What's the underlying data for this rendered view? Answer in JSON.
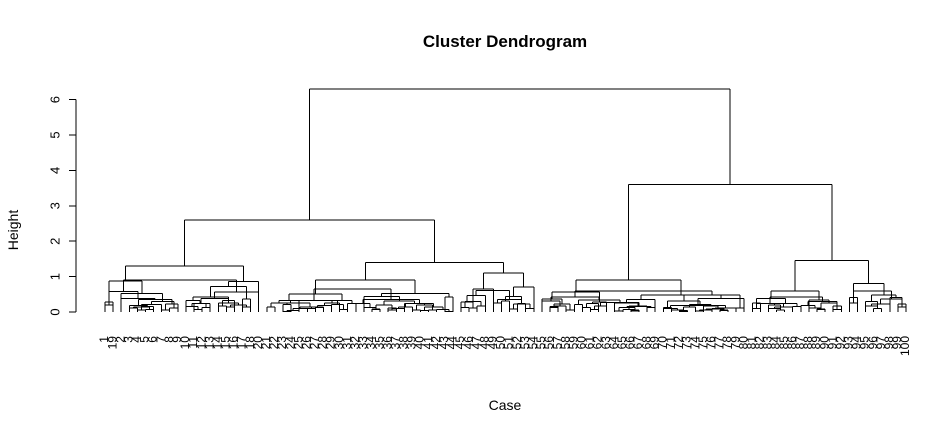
{
  "chart_data": {
    "type": "dendrogram",
    "title": "Cluster Dendrogram",
    "xlabel": "Case",
    "ylabel": "Height",
    "ylim": [
      0,
      6.5
    ],
    "yticks": [
      0,
      1,
      2,
      3,
      4,
      5,
      6
    ],
    "leaf_labels": [
      "1",
      "19",
      "2",
      "3",
      "4",
      "5",
      "6",
      "7",
      "8",
      "9",
      "10",
      "11",
      "12",
      "13",
      "14",
      "15",
      "16",
      "17",
      "18",
      "20",
      "21",
      "22",
      "23",
      "24",
      "25",
      "26",
      "27",
      "28",
      "29",
      "30",
      "31",
      "32",
      "33",
      "34",
      "35",
      "36",
      "37",
      "38",
      "39",
      "40",
      "41",
      "42",
      "43",
      "44",
      "45",
      "46",
      "47",
      "48",
      "49",
      "50",
      "51",
      "52",
      "53",
      "54",
      "55",
      "56",
      "57",
      "58",
      "59",
      "60",
      "61",
      "62",
      "63",
      "64",
      "65",
      "66",
      "67",
      "68",
      "69",
      "70",
      "71",
      "72",
      "73",
      "74",
      "75",
      "76",
      "77",
      "78",
      "79",
      "80",
      "81",
      "82",
      "83",
      "84",
      "85",
      "86",
      "87",
      "88",
      "89",
      "90",
      "91",
      "92",
      "93",
      "94",
      "95",
      "96",
      "97",
      "98",
      "99",
      "100"
    ],
    "merges": [
      {
        "id": "root",
        "height": 6.3,
        "children": [
          "L",
          "R"
        ]
      },
      {
        "id": "L",
        "height": 2.6,
        "children": [
          "LL",
          "LR"
        ]
      },
      {
        "id": "R",
        "height": 3.6,
        "children": [
          "RL",
          "RR"
        ]
      },
      {
        "id": "LL",
        "height": 1.3,
        "leaves": [
          0,
          20
        ]
      },
      {
        "id": "LR",
        "height": 1.4,
        "children": [
          "LRa",
          "LRb"
        ]
      },
      {
        "id": "LRa",
        "height": 0.9,
        "leaves": [
          20,
          44
        ]
      },
      {
        "id": "LRb",
        "height": 1.1,
        "leaves": [
          44,
          54
        ]
      },
      {
        "id": "RL",
        "height": 0.9,
        "leaves": [
          54,
          80
        ]
      },
      {
        "id": "RR",
        "height": 1.45,
        "children": [
          "RRa",
          "RRb"
        ]
      },
      {
        "id": "RRa",
        "height": 0.6,
        "leaves": [
          80,
          92
        ]
      },
      {
        "id": "RRb",
        "height": 0.8,
        "leaves": [
          92,
          100
        ]
      }
    ]
  }
}
